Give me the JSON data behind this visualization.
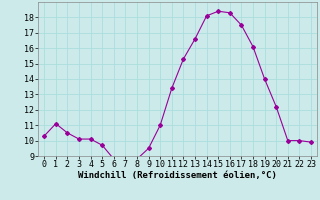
{
  "x": [
    0,
    1,
    2,
    3,
    4,
    5,
    6,
    7,
    8,
    9,
    10,
    11,
    12,
    13,
    14,
    15,
    16,
    17,
    18,
    19,
    20,
    21,
    22,
    23
  ],
  "y": [
    10.3,
    11.1,
    10.5,
    10.1,
    10.1,
    9.7,
    8.8,
    8.8,
    8.8,
    9.5,
    11.0,
    13.4,
    15.3,
    16.6,
    18.1,
    18.4,
    18.3,
    17.5,
    16.1,
    14.0,
    12.2,
    10.0,
    10.0,
    9.9
  ],
  "line_color": "#990099",
  "marker": "D",
  "marker_size": 2.0,
  "bg_color": "#cceaea",
  "grid_color": "#aadddd",
  "xlabel": "Windchill (Refroidissement éolien,°C)",
  "xlabel_fontsize": 6.5,
  "tick_fontsize": 6.0,
  "ylim": [
    9,
    19
  ],
  "xlim": [
    -0.5,
    23.5
  ],
  "yticks": [
    9,
    10,
    11,
    12,
    13,
    14,
    15,
    16,
    17,
    18
  ],
  "xticks": [
    0,
    1,
    2,
    3,
    4,
    5,
    6,
    7,
    8,
    9,
    10,
    11,
    12,
    13,
    14,
    15,
    16,
    17,
    18,
    19,
    20,
    21,
    22,
    23
  ]
}
